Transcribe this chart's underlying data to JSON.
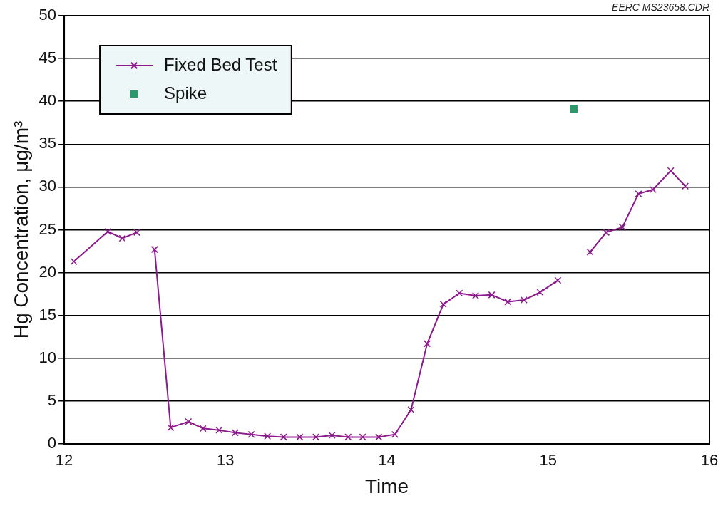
{
  "chart_data": {
    "type": "line",
    "xlabel": "Time",
    "ylabel": "Hg Concentration, μg/m³",
    "annotations": [
      "EERC MS23658.CDR"
    ],
    "xlim": [
      12,
      16
    ],
    "xticks": [
      12,
      13,
      14,
      15,
      16
    ],
    "ylim": [
      0,
      50
    ],
    "yticks": [
      0,
      5,
      10,
      15,
      20,
      25,
      30,
      35,
      40,
      45,
      50
    ],
    "grid": "y",
    "legend": "top left",
    "series": [
      {
        "name": "Fixed Bed Test",
        "color": "#8b1a8b",
        "marker": "cross",
        "x": [
          12.06,
          12.27,
          12.36,
          12.45,
          12.5,
          12.56,
          12.66,
          12.77,
          12.86,
          12.96,
          13.06,
          13.16,
          13.26,
          13.36,
          13.46,
          13.56,
          13.66,
          13.76,
          13.85,
          13.95,
          14.05,
          14.15,
          14.25,
          14.35,
          14.45,
          14.55,
          14.65,
          14.75,
          14.85,
          14.95,
          15.06,
          15.16,
          15.26,
          15.36,
          15.46,
          15.56,
          15.65,
          15.76,
          15.85
        ],
        "values": [
          21.3,
          24.8,
          24.0,
          24.7,
          null,
          22.7,
          1.9,
          2.6,
          1.8,
          1.6,
          1.3,
          1.1,
          0.9,
          0.8,
          0.8,
          0.8,
          1.0,
          0.8,
          0.8,
          0.8,
          1.1,
          4.0,
          11.7,
          16.3,
          17.6,
          17.3,
          17.4,
          16.6,
          16.8,
          17.7,
          19.1,
          null,
          22.4,
          24.7,
          25.3,
          29.2,
          29.7,
          31.9,
          30.1
        ]
      },
      {
        "name": "Spike",
        "type": "scatter",
        "color": "#2a9a6a",
        "marker": "square",
        "x": [
          15.16
        ],
        "values": [
          39.1
        ]
      }
    ]
  }
}
